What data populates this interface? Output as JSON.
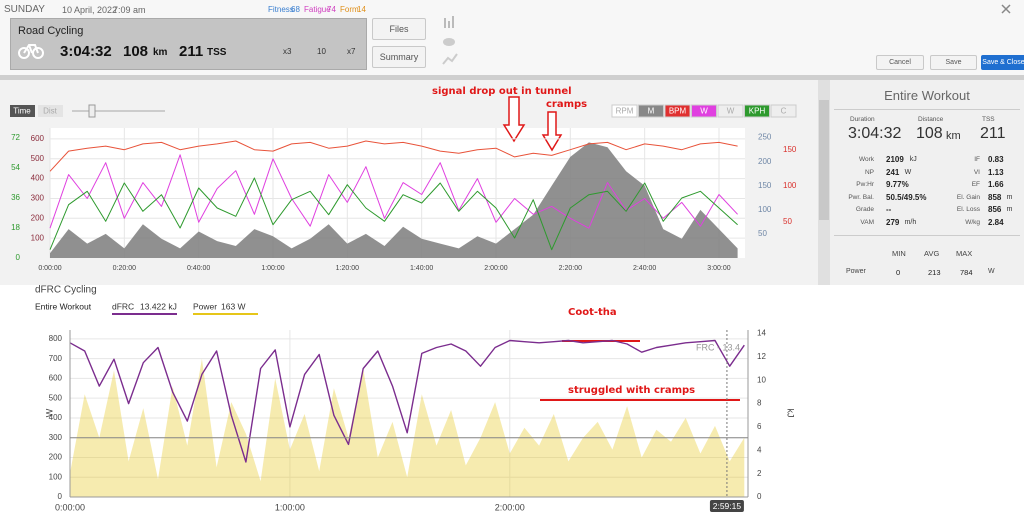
{
  "header": {
    "day": "SUNDAY",
    "date": "10 April, 2022",
    "time": "7:09 am",
    "fitness_label": "Fitness",
    "fitness": "68",
    "fatigue_label": "Fatigue",
    "fatigue": "74",
    "form_label": "Form",
    "form": "14"
  },
  "activity": {
    "name": "Road Cycling",
    "duration": "3:04:32",
    "distance": "108",
    "distance_unit": "km",
    "tss": "211",
    "tss_unit": "TSS",
    "badges": [
      "x3",
      "10",
      "x7"
    ]
  },
  "buttons": {
    "files": "Files",
    "summary": "Summary",
    "cancel": "Cancel",
    "save": "Save",
    "save_close": "Save & Close"
  },
  "chart_data": [
    {
      "type": "line",
      "grid": true,
      "toolbar": [
        "Time",
        "Dist"
      ],
      "channels": [
        "RPM",
        "M",
        "BPM",
        "W",
        "W",
        "KPH",
        "C"
      ],
      "annotations": [
        "signal drop out in tunnel",
        "cramps"
      ],
      "x": [
        0,
        5,
        10,
        15,
        20,
        25,
        30,
        35,
        40,
        45,
        50,
        55,
        60,
        65,
        70,
        75,
        80,
        85,
        90,
        95,
        100,
        105,
        110,
        115,
        120,
        125,
        130,
        135,
        140,
        145,
        150,
        155,
        160,
        165,
        170,
        175,
        180,
        185
      ],
      "xlim": [
        0,
        187
      ],
      "xticks": [
        {
          "value": 0,
          "label": "0:00:00"
        },
        {
          "value": 20,
          "label": "0:20:00"
        },
        {
          "value": 40,
          "label": "0:40:00"
        },
        {
          "value": 60,
          "label": "1:00:00"
        },
        {
          "value": 80,
          "label": "1:20:00"
        },
        {
          "value": 100,
          "label": "1:40:00"
        },
        {
          "value": 120,
          "label": "2:00:00"
        },
        {
          "value": 140,
          "label": "2:20:00"
        },
        {
          "value": 160,
          "label": "2:40:00"
        },
        {
          "value": 180,
          "label": "3:00:00"
        }
      ],
      "series": [
        {
          "color": "#7d7d7d",
          "style": "area",
          "ylim": [
            0,
            270
          ],
          "yticks": [
            50,
            100,
            150,
            200,
            250
          ],
          "tick_color": "#6f87a6",
          "values": [
            10,
            60,
            30,
            50,
            20,
            70,
            40,
            20,
            55,
            35,
            25,
            60,
            45,
            20,
            40,
            70,
            30,
            50,
            25,
            65,
            40,
            30,
            20,
            45,
            30,
            60,
            90,
            150,
            210,
            240,
            230,
            180,
            150,
            60,
            40,
            100,
            60,
            20
          ]
        },
        {
          "color": "#e040e0",
          "style": "line",
          "ylim": [
            0,
            655
          ],
          "yticks": [
            100,
            200,
            300,
            400,
            500,
            600
          ],
          "tick_color": "#8a2a3a",
          "values": [
            150,
            420,
            300,
            480,
            200,
            380,
            260,
            520,
            180,
            350,
            440,
            220,
            500,
            300,
            160,
            420,
            280,
            460,
            200,
            380,
            320,
            480,
            240,
            400,
            180,
            300,
            220,
            260,
            200,
            150,
            380,
            240,
            300,
            200,
            280,
            160,
            320,
            220
          ]
        },
        {
          "color": "#2e9a2e",
          "style": "line",
          "ylim": [
            0,
            78
          ],
          "yticks": [
            0,
            18,
            36,
            54,
            72
          ],
          "tick_color": "#2e9a2e",
          "values": [
            5,
            32,
            40,
            22,
            45,
            28,
            38,
            18,
            42,
            30,
            25,
            48,
            20,
            35,
            40,
            26,
            44,
            30,
            22,
            38,
            33,
            45,
            28,
            40,
            30,
            12,
            35,
            5,
            30,
            38,
            40,
            28,
            45,
            22,
            36,
            40,
            30,
            20
          ]
        },
        {
          "color": "#e8533a",
          "style": "line",
          "ylim": [
            0,
            180
          ],
          "yticks": [
            50,
            100,
            150
          ],
          "tick_color": "#d9302c",
          "values": [
            120,
            148,
            152,
            155,
            150,
            158,
            160,
            150,
            155,
            158,
            162,
            150,
            148,
            158,
            160,
            152,
            155,
            162,
            158,
            160,
            155,
            148,
            145,
            150,
            152,
            140,
            145,
            142,
            150,
            158,
            160,
            150,
            158,
            155,
            150,
            158,
            160,
            155
          ]
        }
      ]
    },
    {
      "type": "line",
      "grid": true,
      "title": "dFRC Cycling",
      "subtitle": "Entire Workout",
      "ylabel": "W",
      "y2label": "kJ",
      "x": [
        0,
        4,
        8,
        12,
        16,
        20,
        24,
        28,
        32,
        36,
        40,
        44,
        48,
        52,
        56,
        60,
        64,
        68,
        72,
        76,
        80,
        84,
        88,
        92,
        96,
        100,
        104,
        108,
        112,
        116,
        120,
        124,
        128,
        132,
        136,
        140,
        144,
        148,
        152,
        156,
        160,
        164,
        168,
        172,
        176,
        180,
        184
      ],
      "xlim": [
        0,
        185
      ],
      "xticks": [
        {
          "value": 0,
          "label": "0:00:00"
        },
        {
          "value": 60,
          "label": "1:00:00"
        },
        {
          "value": 120,
          "label": "2:00:00"
        }
      ],
      "ylim": [
        0,
        845
      ],
      "yticks": [
        0,
        100,
        200,
        300,
        400,
        500,
        600,
        700,
        800
      ],
      "y2lim": [
        0,
        14.3
      ],
      "y2ticks": [
        0,
        2,
        4,
        6,
        8,
        10,
        12,
        14
      ],
      "reference_line": 300,
      "cursor": {
        "value": 179.25,
        "label": "2:59:15"
      },
      "annotations": [
        "Coot-tha",
        "struggled with cramps",
        "FRC - 13.4"
      ],
      "series": [
        {
          "name": "dFRC",
          "legend_value": "13.422 kJ",
          "color": "#7b2d8e",
          "style": "line",
          "axis": "y2",
          "values": [
            13.2,
            12.5,
            9.5,
            11.8,
            8,
            11.5,
            12.8,
            9,
            6.5,
            10.5,
            12.5,
            7,
            3,
            11,
            12.6,
            6,
            10.5,
            12.2,
            7,
            4.5,
            11,
            12.5,
            9.5,
            5.5,
            12.3,
            12.8,
            13.1,
            12.5,
            11.2,
            12.8,
            13.4,
            13.3,
            13.2,
            13.3,
            13.4,
            13.2,
            13.3,
            13.4,
            13.1,
            12.4,
            12.8,
            13.0,
            13.2,
            13.3,
            13.4,
            11.2,
            13.0
          ]
        },
        {
          "name": "Power",
          "legend_value": "163 W",
          "color": "#e6c619",
          "style": "area",
          "axis": "y",
          "values": [
            120,
            520,
            300,
            640,
            180,
            450,
            90,
            560,
            260,
            700,
            150,
            480,
            320,
            80,
            600,
            240,
            420,
            130,
            550,
            300,
            650,
            200,
            380,
            100,
            520,
            260,
            440,
            160,
            300,
            480,
            220,
            350,
            260,
            420,
            180,
            300,
            380,
            240,
            460,
            200,
            340,
            280,
            400,
            220,
            360,
            180,
            300
          ]
        }
      ]
    }
  ],
  "stats": {
    "title": "Entire Workout",
    "summary": [
      {
        "label": "Duration",
        "value": "3:04:32"
      },
      {
        "label": "Distance",
        "value": "108",
        "unit": "km"
      },
      {
        "label": "TSS",
        "value": "211"
      }
    ],
    "rows": [
      [
        {
          "label": "Work",
          "value": "2109",
          "unit": "kJ"
        },
        {
          "label": "IF",
          "value": "0.83"
        }
      ],
      [
        {
          "label": "NP",
          "value": "241",
          "unit": "W"
        },
        {
          "label": "VI",
          "value": "1.13"
        }
      ],
      [
        {
          "label": "Pw:Hr",
          "value": "9.77%"
        },
        {
          "label": "EF",
          "value": "1.66"
        }
      ],
      [
        {
          "label": "Pwr. Bal.",
          "value": "50.5/49.5%"
        },
        {
          "label": "El. Gain",
          "value": "858",
          "unit": "m"
        }
      ],
      [
        {
          "label": "Grade",
          "value": "--"
        },
        {
          "label": "El. Loss",
          "value": "856",
          "unit": "m"
        }
      ],
      [
        {
          "label": "VAM",
          "value": "279",
          "unit": "m/h"
        },
        {
          "label": "W/kg",
          "value": "2.84"
        }
      ]
    ],
    "minmax": {
      "headers": [
        "MIN",
        "AVG",
        "MAX"
      ],
      "rows": [
        {
          "label": "Power",
          "values": [
            "0",
            "213",
            "784"
          ],
          "unit": "W"
        }
      ]
    }
  }
}
